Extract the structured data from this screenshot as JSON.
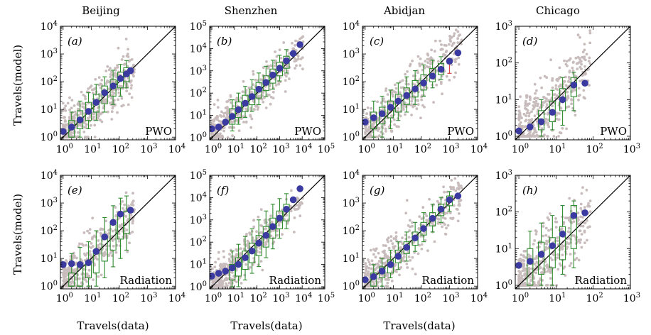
{
  "figure": {
    "ylabel": "Travels(model)",
    "xlabel": "Travels(data)",
    "row_labels": [
      "PWO",
      "Radiation"
    ],
    "colors": {
      "scatter": "#c8bcbc",
      "box": "#2e8b2e",
      "mean": "#3a3aa0",
      "diagonal": "#000000",
      "highlight": "#d64545"
    }
  },
  "chart_data": [
    {
      "type": "scatter",
      "panel": "(a)",
      "city": "Beijing",
      "model": "PWO",
      "x_max_exp": 4,
      "y_max_exp": 4,
      "xlim": [
        0.8,
        10000
      ],
      "ylim": [
        0.8,
        10000
      ],
      "x_tick_labels": [
        "10^0",
        "10^1",
        "10^2",
        "10^3",
        "10^4"
      ],
      "y_tick_labels": [
        "10^0",
        "10^1",
        "10^2",
        "10^3",
        "10^4"
      ],
      "series": [
        {
          "values": [
            {
              "x": 1,
              "y": 1.6
            },
            {
              "x": 2,
              "y": 2.3
            },
            {
              "x": 4,
              "y": 4.2
            },
            {
              "x": 8,
              "y": 8.5
            },
            {
              "x": 15,
              "y": 18
            },
            {
              "x": 30,
              "y": 40
            },
            {
              "x": 60,
              "y": 70
            },
            {
              "x": 110,
              "y": 130
            },
            {
              "x": 180,
              "y": 190
            },
            {
              "x": 250,
              "y": 250
            }
          ]
        }
      ],
      "boxes": [
        {
          "x": 2,
          "low": 1,
          "q1": 1,
          "q3": 4,
          "high": 8
        },
        {
          "x": 4,
          "low": 1,
          "q1": 2,
          "q3": 9,
          "high": 20
        },
        {
          "x": 8,
          "low": 2,
          "q1": 4,
          "q3": 18,
          "high": 40
        },
        {
          "x": 15,
          "low": 4,
          "q1": 8,
          "q3": 35,
          "high": 80
        },
        {
          "x": 30,
          "low": 8,
          "q1": 16,
          "q3": 70,
          "high": 150
        },
        {
          "x": 60,
          "low": 15,
          "q1": 30,
          "q3": 120,
          "high": 260
        },
        {
          "x": 110,
          "low": 30,
          "q1": 60,
          "q3": 220,
          "high": 420
        },
        {
          "x": 180,
          "low": 60,
          "q1": 100,
          "q3": 320,
          "high": 580
        }
      ]
    },
    {
      "type": "scatter",
      "panel": "(b)",
      "city": "Shenzhen",
      "model": "PWO",
      "x_max_exp": 5,
      "y_max_exp": 5,
      "xlim": [
        0.8,
        100000
      ],
      "ylim": [
        0.8,
        100000
      ],
      "x_tick_labels": [
        "10^0",
        "10^1",
        "10^2",
        "10^3",
        "10^4",
        "10^5"
      ],
      "y_tick_labels": [
        "10^0",
        "10^1",
        "10^2",
        "10^3",
        "10^4",
        "10^5"
      ],
      "series": [
        {
          "values": [
            {
              "x": 1,
              "y": 2.5
            },
            {
              "x": 2,
              "y": 3
            },
            {
              "x": 4,
              "y": 5
            },
            {
              "x": 8,
              "y": 9
            },
            {
              "x": 15,
              "y": 18
            },
            {
              "x": 30,
              "y": 35
            },
            {
              "x": 60,
              "y": 70
            },
            {
              "x": 120,
              "y": 150
            },
            {
              "x": 250,
              "y": 300
            },
            {
              "x": 500,
              "y": 650
            },
            {
              "x": 1000,
              "y": 1300
            },
            {
              "x": 2000,
              "y": 2800
            },
            {
              "x": 4000,
              "y": 6000
            },
            {
              "x": 8000,
              "y": 15000
            }
          ]
        }
      ],
      "boxes": [
        {
          "x": 8,
          "low": 2,
          "q1": 4,
          "q3": 20,
          "high": 50
        },
        {
          "x": 15,
          "low": 4,
          "q1": 8,
          "q3": 40,
          "high": 100
        },
        {
          "x": 30,
          "low": 8,
          "q1": 15,
          "q3": 80,
          "high": 200
        },
        {
          "x": 60,
          "low": 15,
          "q1": 30,
          "q3": 150,
          "high": 400
        },
        {
          "x": 120,
          "low": 30,
          "q1": 60,
          "q3": 300,
          "high": 800
        },
        {
          "x": 250,
          "low": 70,
          "q1": 130,
          "q3": 600,
          "high": 1600
        },
        {
          "x": 500,
          "low": 150,
          "q1": 280,
          "q3": 1200,
          "high": 3000
        },
        {
          "x": 1000,
          "low": 350,
          "q1": 600,
          "q3": 2400,
          "high": 5000
        },
        {
          "x": 2000,
          "low": 800,
          "q1": 1300,
          "q3": 4500,
          "high": 9000
        }
      ]
    },
    {
      "type": "scatter",
      "panel": "(c)",
      "city": "Abidjan",
      "model": "PWO",
      "x_max_exp": 4,
      "y_max_exp": 4,
      "xlim": [
        0.8,
        10000
      ],
      "ylim": [
        0.8,
        10000
      ],
      "x_tick_labels": [
        "10^0",
        "10^1",
        "10^2",
        "10^3",
        "10^4"
      ],
      "y_tick_labels": [
        "10^0",
        "10^1",
        "10^2",
        "10^3",
        "10^4"
      ],
      "series": [
        {
          "values": [
            {
              "x": 1,
              "y": 3.5
            },
            {
              "x": 2,
              "y": 5
            },
            {
              "x": 4,
              "y": 7
            },
            {
              "x": 8,
              "y": 12
            },
            {
              "x": 15,
              "y": 20
            },
            {
              "x": 30,
              "y": 32
            },
            {
              "x": 60,
              "y": 55
            },
            {
              "x": 120,
              "y": 90
            },
            {
              "x": 250,
              "y": 160
            },
            {
              "x": 500,
              "y": 280
            },
            {
              "x": 1000,
              "y": 550
            },
            {
              "x": 2000,
              "y": 1100
            }
          ]
        }
      ],
      "boxes": [
        {
          "x": 2,
          "low": 1,
          "q1": 2,
          "q3": 8,
          "high": 20
        },
        {
          "x": 4,
          "low": 1,
          "q1": 3,
          "q3": 12,
          "high": 30
        },
        {
          "x": 8,
          "low": 2,
          "q1": 5,
          "q3": 20,
          "high": 50
        },
        {
          "x": 15,
          "low": 4,
          "q1": 8,
          "q3": 35,
          "high": 90
        },
        {
          "x": 30,
          "low": 8,
          "q1": 15,
          "q3": 60,
          "high": 150
        },
        {
          "x": 60,
          "low": 15,
          "q1": 28,
          "q3": 110,
          "high": 250
        },
        {
          "x": 120,
          "low": 30,
          "q1": 50,
          "q3": 180,
          "high": 400
        },
        {
          "x": 250,
          "low": 60,
          "q1": 100,
          "q3": 300,
          "high": 600
        },
        {
          "x": 500,
          "low": 120,
          "q1": 180,
          "q3": 450,
          "high": 800
        }
      ],
      "highlight": {
        "x": 1000,
        "low": 200,
        "high": 700
      }
    },
    {
      "type": "scatter",
      "panel": "(d)",
      "city": "Chicago",
      "model": "PWO",
      "x_max_exp": 3,
      "y_max_exp": 3,
      "xlim": [
        0.8,
        1000
      ],
      "ylim": [
        0.8,
        1000
      ],
      "x_tick_labels": [
        "10^0",
        "10^1",
        "10^2",
        "10^3"
      ],
      "y_tick_labels": [
        "10^0",
        "10^1",
        "10^2",
        "10^3"
      ],
      "series": [
        {
          "values": [
            {
              "x": 1,
              "y": 1.4
            },
            {
              "x": 2,
              "y": 1.8
            },
            {
              "x": 4,
              "y": 2.5
            },
            {
              "x": 8,
              "y": 4.5
            },
            {
              "x": 15,
              "y": 10
            },
            {
              "x": 30,
              "y": 25
            },
            {
              "x": 60,
              "y": 28
            }
          ]
        }
      ],
      "boxes": [
        {
          "x": 4,
          "low": 1,
          "q1": 1.5,
          "q3": 5,
          "high": 10
        },
        {
          "x": 8,
          "low": 1.5,
          "q1": 2.5,
          "q3": 9,
          "high": 18
        },
        {
          "x": 15,
          "low": 2,
          "q1": 5,
          "q3": 20,
          "high": 40
        },
        {
          "x": 30,
          "low": 5,
          "q1": 12,
          "q3": 40,
          "high": 55
        }
      ]
    },
    {
      "type": "scatter",
      "panel": "(e)",
      "city": "Beijing",
      "model": "Radiation",
      "x_max_exp": 4,
      "y_max_exp": 4,
      "xlim": [
        0.8,
        10000
      ],
      "ylim": [
        0.8,
        10000
      ],
      "x_tick_labels": [
        "10^0",
        "10^1",
        "10^2",
        "10^3",
        "10^4"
      ],
      "y_tick_labels": [
        "10^0",
        "10^1",
        "10^2",
        "10^3",
        "10^4"
      ],
      "series": [
        {
          "values": [
            {
              "x": 1,
              "y": 6
            },
            {
              "x": 2,
              "y": 6.5
            },
            {
              "x": 4,
              "y": 6
            },
            {
              "x": 8,
              "y": 7
            },
            {
              "x": 15,
              "y": 18
            },
            {
              "x": 30,
              "y": 60
            },
            {
              "x": 60,
              "y": 200
            },
            {
              "x": 110,
              "y": 400
            },
            {
              "x": 250,
              "y": 550
            }
          ]
        }
      ],
      "boxes": [
        {
          "x": 2,
          "low": 1,
          "q1": 1,
          "q3": 3,
          "high": 15
        },
        {
          "x": 4,
          "low": 1,
          "q1": 1,
          "q3": 5,
          "high": 25
        },
        {
          "x": 8,
          "low": 1,
          "q1": 2,
          "q3": 8,
          "high": 40
        },
        {
          "x": 15,
          "low": 1,
          "q1": 3,
          "q3": 20,
          "high": 100
        },
        {
          "x": 30,
          "low": 2,
          "q1": 8,
          "q3": 60,
          "high": 300
        },
        {
          "x": 60,
          "low": 5,
          "q1": 20,
          "q3": 200,
          "high": 800
        },
        {
          "x": 110,
          "low": 10,
          "q1": 50,
          "q3": 400,
          "high": 1500
        },
        {
          "x": 180,
          "low": 20,
          "q1": 80,
          "q3": 500,
          "high": 1800
        }
      ]
    },
    {
      "type": "scatter",
      "panel": "(f)",
      "city": "Shenzhen",
      "model": "Radiation",
      "x_max_exp": 5,
      "y_max_exp": 5,
      "xlim": [
        0.8,
        100000
      ],
      "ylim": [
        0.8,
        100000
      ],
      "x_tick_labels": [
        "10^0",
        "10^1",
        "10^2",
        "10^3",
        "10^4",
        "10^5"
      ],
      "y_tick_labels": [
        "10^0",
        "10^1",
        "10^2",
        "10^3",
        "10^4",
        "10^5"
      ],
      "series": [
        {
          "values": [
            {
              "x": 1,
              "y": 3
            },
            {
              "x": 2,
              "y": 4
            },
            {
              "x": 4,
              "y": 5
            },
            {
              "x": 8,
              "y": 7
            },
            {
              "x": 15,
              "y": 10
            },
            {
              "x": 30,
              "y": 20
            },
            {
              "x": 60,
              "y": 40
            },
            {
              "x": 120,
              "y": 90
            },
            {
              "x": 250,
              "y": 200
            },
            {
              "x": 500,
              "y": 500
            },
            {
              "x": 1000,
              "y": 1200
            },
            {
              "x": 2000,
              "y": 3000
            },
            {
              "x": 4000,
              "y": 8000
            },
            {
              "x": 8000,
              "y": 25000
            }
          ]
        }
      ],
      "boxes": [
        {
          "x": 8,
          "low": 1,
          "q1": 2,
          "q3": 10,
          "high": 40
        },
        {
          "x": 15,
          "low": 1,
          "q1": 3,
          "q3": 20,
          "high": 80
        },
        {
          "x": 30,
          "low": 2,
          "q1": 6,
          "q3": 40,
          "high": 180
        },
        {
          "x": 60,
          "low": 4,
          "q1": 12,
          "q3": 90,
          "high": 400
        },
        {
          "x": 120,
          "low": 8,
          "q1": 25,
          "q3": 200,
          "high": 1000
        },
        {
          "x": 250,
          "low": 20,
          "q1": 60,
          "q3": 500,
          "high": 2500
        },
        {
          "x": 500,
          "low": 50,
          "q1": 150,
          "q3": 1200,
          "high": 5000
        },
        {
          "x": 1000,
          "low": 150,
          "q1": 400,
          "q3": 2500,
          "high": 9000
        },
        {
          "x": 2000,
          "low": 400,
          "q1": 900,
          "q3": 5000,
          "high": 15000
        }
      ]
    },
    {
      "type": "scatter",
      "panel": "(g)",
      "city": "Abidjan",
      "model": "Radiation",
      "x_max_exp": 4,
      "y_max_exp": 4,
      "xlim": [
        0.8,
        10000
      ],
      "ylim": [
        0.8,
        10000
      ],
      "x_tick_labels": [
        "10^0",
        "10^1",
        "10^2",
        "10^3",
        "10^4"
      ],
      "y_tick_labels": [
        "10^0",
        "10^1",
        "10^2",
        "10^3",
        "10^4"
      ],
      "series": [
        {
          "values": [
            {
              "x": 1,
              "y": 1.7
            },
            {
              "x": 2,
              "y": 2.2
            },
            {
              "x": 4,
              "y": 3.5
            },
            {
              "x": 8,
              "y": 6
            },
            {
              "x": 15,
              "y": 12
            },
            {
              "x": 30,
              "y": 25
            },
            {
              "x": 60,
              "y": 55
            },
            {
              "x": 120,
              "y": 120
            },
            {
              "x": 250,
              "y": 280
            },
            {
              "x": 500,
              "y": 600
            },
            {
              "x": 1000,
              "y": 1300
            },
            {
              "x": 2000,
              "y": 1800
            }
          ]
        }
      ],
      "boxes": [
        {
          "x": 2,
          "low": 1,
          "q1": 1,
          "q3": 3,
          "high": 6
        },
        {
          "x": 4,
          "low": 1,
          "q1": 2,
          "q3": 5,
          "high": 10
        },
        {
          "x": 8,
          "low": 2,
          "q1": 3,
          "q3": 9,
          "high": 20
        },
        {
          "x": 15,
          "low": 4,
          "q1": 7,
          "q3": 20,
          "high": 40
        },
        {
          "x": 30,
          "low": 8,
          "q1": 15,
          "q3": 40,
          "high": 90
        },
        {
          "x": 60,
          "low": 18,
          "q1": 30,
          "q3": 90,
          "high": 200
        },
        {
          "x": 120,
          "low": 40,
          "q1": 70,
          "q3": 200,
          "high": 450
        },
        {
          "x": 250,
          "low": 90,
          "q1": 150,
          "q3": 450,
          "high": 900
        },
        {
          "x": 500,
          "low": 200,
          "q1": 350,
          "q3": 900,
          "high": 1600
        },
        {
          "x": 1000,
          "low": 500,
          "q1": 800,
          "q3": 1800,
          "high": 2600
        }
      ]
    },
    {
      "type": "scatter",
      "panel": "(h)",
      "city": "Chicago",
      "model": "Radiation",
      "x_max_exp": 3,
      "y_max_exp": 3,
      "xlim": [
        0.8,
        1000
      ],
      "ylim": [
        0.8,
        1000
      ],
      "x_tick_labels": [
        "10^0",
        "10^1",
        "10^2",
        "10^3"
      ],
      "y_tick_labels": [
        "10^0",
        "10^1",
        "10^2",
        "10^3"
      ],
      "series": [
        {
          "values": [
            {
              "x": 1,
              "y": 3.5
            },
            {
              "x": 2,
              "y": 4.5
            },
            {
              "x": 4,
              "y": 7
            },
            {
              "x": 8,
              "y": 12
            },
            {
              "x": 15,
              "y": 25
            },
            {
              "x": 30,
              "y": 80
            },
            {
              "x": 60,
              "y": 95
            }
          ]
        }
      ],
      "boxes": [
        {
          "x": 2,
          "low": 1,
          "q1": 1,
          "q3": 10,
          "high": 30
        },
        {
          "x": 4,
          "low": 1,
          "q1": 2,
          "q3": 15,
          "high": 50
        },
        {
          "x": 8,
          "low": 1,
          "q1": 3,
          "q3": 20,
          "high": 80
        },
        {
          "x": 15,
          "low": 2,
          "q1": 5,
          "q3": 40,
          "high": 150
        },
        {
          "x": 30,
          "low": 3,
          "q1": 10,
          "q3": 150,
          "high": 200
        }
      ]
    }
  ]
}
